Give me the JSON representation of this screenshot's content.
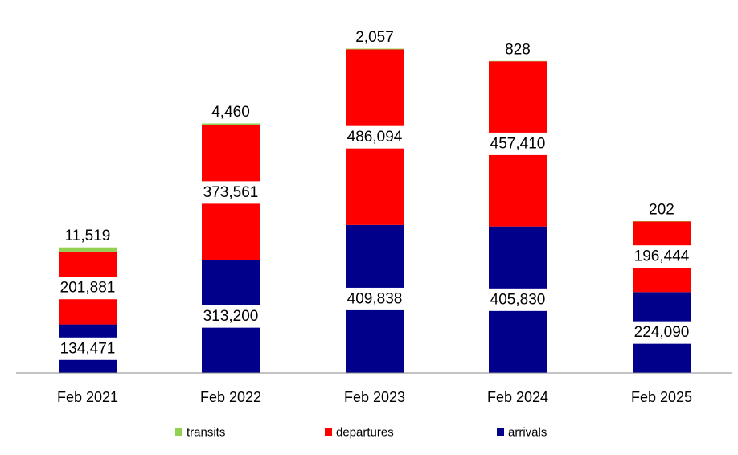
{
  "chart_data": {
    "type": "bar",
    "stacked": true,
    "categories": [
      "Feb 2021",
      "Feb 2022",
      "Feb 2023",
      "Feb 2024",
      "Feb 2025"
    ],
    "series": [
      {
        "name": "arrivals",
        "color": "#00008b",
        "values": [
          134471,
          313200,
          409838,
          405830,
          224090
        ]
      },
      {
        "name": "departures",
        "color": "#ff0000",
        "values": [
          201881,
          373561,
          486094,
          457410,
          196444
        ]
      },
      {
        "name": "transits",
        "color": "#92d050",
        "values": [
          11519,
          4460,
          2057,
          828,
          202
        ]
      }
    ],
    "data_labels": {
      "arrivals": [
        "134,471",
        "313,200",
        "409,838",
        "405,830",
        "224,090"
      ],
      "departures": [
        "201,881",
        "373,561",
        "486,094",
        "457,410",
        "196,444"
      ],
      "transits": [
        "11,519",
        "4,460",
        "2,057",
        "828",
        "202"
      ]
    },
    "legend": {
      "position": "bottom",
      "entries": [
        "transits",
        "departures",
        "arrivals"
      ]
    },
    "ylim": [
      0,
      966000
    ],
    "grid": false,
    "title": "",
    "xlabel": "",
    "ylabel": ""
  }
}
